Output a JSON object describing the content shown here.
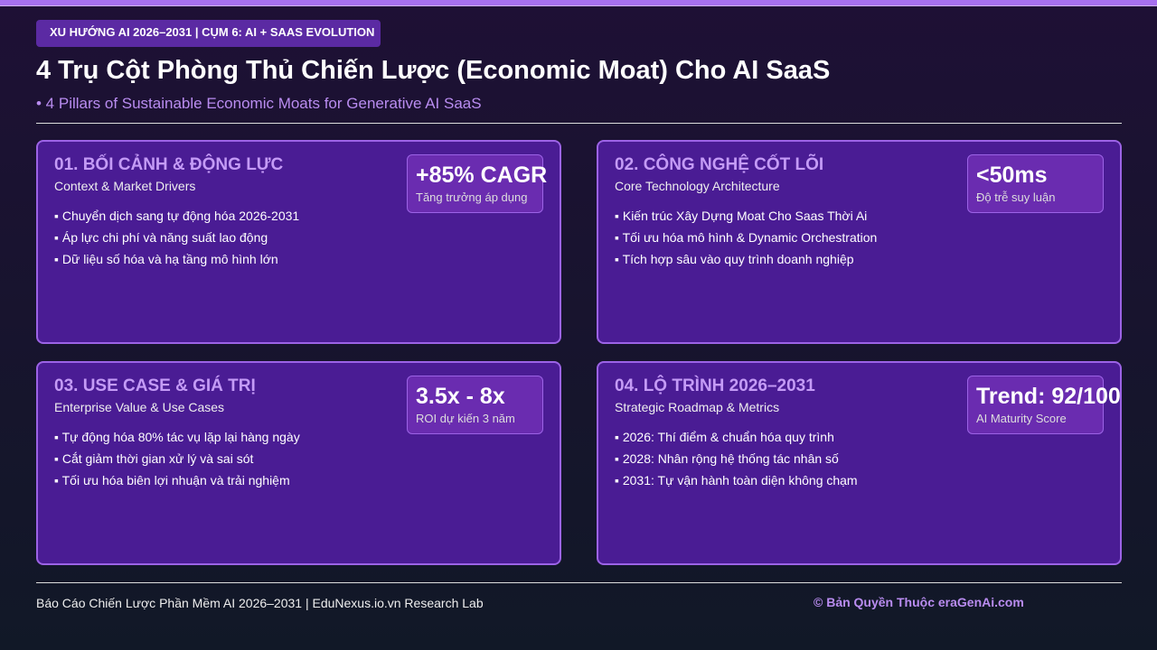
{
  "header": {
    "tag": "XU HƯỚNG AI 2026–2031 | CỤM 6: AI + SAAS EVOLUTION",
    "title": "4 Trụ Cột Phòng Thủ Chiến Lược (Economic Moat) Cho AI SaaS",
    "subtitle": "• 4 Pillars of Sustainable Economic Moats for Generative AI SaaS"
  },
  "cards": [
    {
      "title": "01. BỐI CẢNH & ĐỘNG LỰC",
      "subtitle": "Context & Market Drivers",
      "metric": "+85% CAGR",
      "metric_label": "Tăng trưởng áp dụng",
      "bullets": [
        "▪ Chuyển dịch sang tự động hóa 2026-2031",
        "▪ Áp lực chi phí và năng suất lao động",
        "▪ Dữ liệu số hóa và hạ tầng mô hình lớn"
      ]
    },
    {
      "title": "02. CÔNG NGHỆ CỐT LÕI",
      "subtitle": "Core Technology Architecture",
      "metric": "<50ms",
      "metric_label": "Độ trễ suy luận",
      "bullets": [
        "▪ Kiến trúc Xây Dựng Moat Cho Saas Thời Ai",
        "▪ Tối ưu hóa mô hình & Dynamic Orchestration",
        "▪ Tích hợp sâu vào quy trình doanh nghiệp"
      ]
    },
    {
      "title": "03. USE CASE & GIÁ TRỊ",
      "subtitle": "Enterprise Value & Use Cases",
      "metric": "3.5x - 8x",
      "metric_label": "ROI dự kiến 3 năm",
      "bullets": [
        "▪ Tự động hóa 80% tác vụ lặp lại hàng ngày",
        "▪ Cắt giảm thời gian xử lý và sai sót",
        "▪ Tối ưu hóa biên lợi nhuận và trải nghiệm"
      ]
    },
    {
      "title": "04. LỘ TRÌNH 2026–2031",
      "subtitle": "Strategic Roadmap & Metrics",
      "metric": "Trend: 92/100",
      "metric_label": "AI Maturity Score",
      "bullets": [
        "▪ 2026: Thí điểm & chuẩn hóa quy trình",
        "▪ 2028: Nhân rộng hệ thống tác nhân số",
        "▪ 2031: Tự vận hành toàn diện không chạm"
      ]
    }
  ],
  "footer": {
    "left": "Báo Cáo Chiến Lược Phần Mềm AI 2026–2031 | EduNexus.io.vn Research Lab",
    "right": "© Bản Quyền Thuộc eraGenAi.com"
  }
}
